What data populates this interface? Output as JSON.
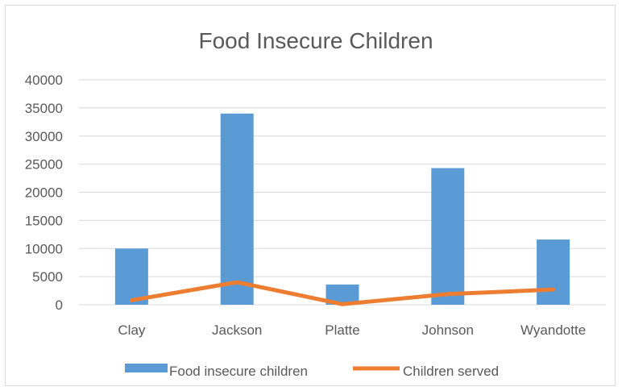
{
  "chart_data": {
    "type": "bar",
    "title": "Food Insecure Children",
    "categories": [
      "Clay",
      "Jackson",
      "Platte",
      "Johnson",
      "Wyandotte"
    ],
    "y_ticks": [
      "0",
      "5000",
      "10000",
      "15000",
      "20000",
      "25000",
      "30000",
      "35000",
      "40000"
    ],
    "ylim": [
      0,
      40000
    ],
    "grid": true,
    "legend_position": "bottom",
    "series": [
      {
        "name": "Food insecure children",
        "type": "bar",
        "color": "#5b9bd5",
        "values": [
          10000,
          34000,
          3600,
          24300,
          11600
        ]
      },
      {
        "name": "Children served",
        "type": "line",
        "color": "#ed7d31",
        "values": [
          800,
          4000,
          100,
          1900,
          2700
        ]
      }
    ]
  }
}
